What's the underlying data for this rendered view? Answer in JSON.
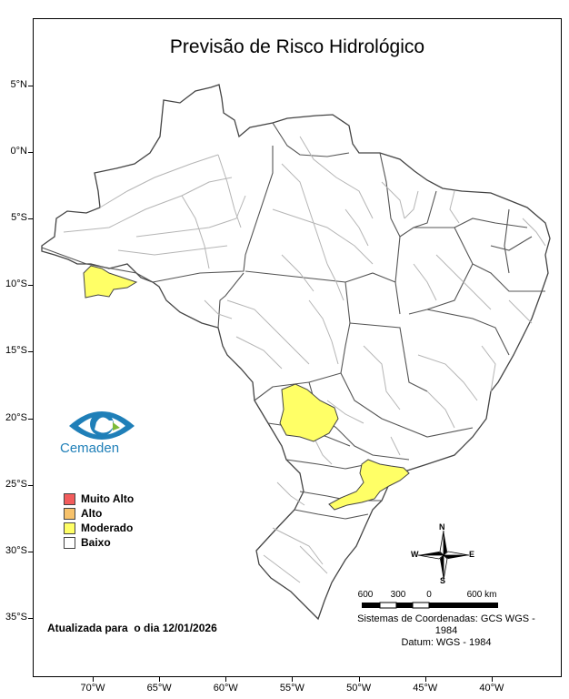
{
  "title": "Previsão de Risco Hidrológico",
  "latitude_labels": [
    {
      "label": "5°N",
      "lat": 5
    },
    {
      "label": "0°N",
      "lat": 0
    },
    {
      "label": "5°S",
      "lat": -5
    },
    {
      "label": "10°S",
      "lat": -10
    },
    {
      "label": "15°S",
      "lat": -15
    },
    {
      "label": "20°S",
      "lat": -20
    },
    {
      "label": "25°S",
      "lat": -25
    },
    {
      "label": "30°S",
      "lat": -30
    },
    {
      "label": "35°S",
      "lat": -35
    }
  ],
  "longitude_labels": [
    {
      "label": "70°W",
      "lon": -70
    },
    {
      "label": "65°W",
      "lon": -65
    },
    {
      "label": "60°W",
      "lon": -60
    },
    {
      "label": "55°W",
      "lon": -55
    },
    {
      "label": "50°W",
      "lon": -50
    },
    {
      "label": "45°W",
      "lon": -45
    },
    {
      "label": "40°W",
      "lon": -40
    }
  ],
  "legend": {
    "items": [
      {
        "label": "Muito Alto",
        "color": "#f25c5c"
      },
      {
        "label": "Alto",
        "color": "#f7c26b"
      },
      {
        "label": "Moderado",
        "color": "#ffff66"
      },
      {
        "label": "Baixo",
        "color": "#ffffff"
      }
    ]
  },
  "logo": {
    "text": "Cemaden",
    "icon": "cemaden-eye-logo",
    "color": "#1f7fb8"
  },
  "updated_text": "Atualizada para  o dia 12/01/2026",
  "coordinate_system": "Sistemas de Coordenadas: GCS WGS - 1984",
  "datum": "Datum: WGS - 1984",
  "compass": {
    "icon": "north-arrow-compass-icon",
    "n": "N",
    "s": "S",
    "e": "E",
    "w": "W"
  },
  "scale": {
    "labels": [
      "600",
      "300",
      "0",
      "600 km"
    ]
  },
  "map_colors": {
    "moderate_fill": "#ffff66",
    "land_fill": "#ffffff",
    "state_border": "#555555",
    "basin_border": "#b5b5b5"
  }
}
